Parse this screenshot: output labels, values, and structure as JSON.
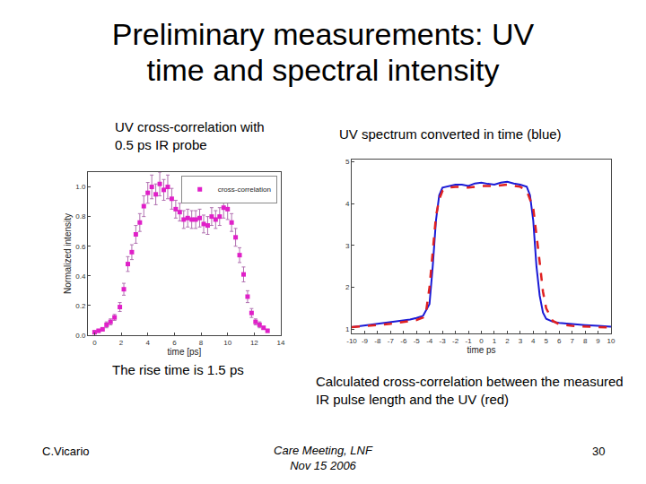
{
  "slide": {
    "title": [
      "Preliminary measurements: UV",
      "time and spectral intensity"
    ],
    "footer_left": "C.Vicario",
    "footer_center": [
      "Care Meeting, LNF",
      "Nov 15 2006"
    ],
    "page": 30
  },
  "chart_data": [
    {
      "type": "scatter",
      "title": [
        "UV cross-correlation with",
        "0.5 ps IR probe"
      ],
      "annotations": [
        "The rise time is 1.5 ps"
      ],
      "x_label": "time [ps]",
      "y_label": "Normalized intensity",
      "series": [
        {
          "name": "cross-correlation",
          "color": "#e020c8",
          "marker": "square",
          "x": [
            0.0,
            0.3,
            0.6,
            0.9,
            1.2,
            1.5,
            1.9,
            2.2,
            2.5,
            2.8,
            3.1,
            3.4,
            3.7,
            4.0,
            4.3,
            4.6,
            4.9,
            5.2,
            5.5,
            5.8,
            6.1,
            6.4,
            6.7,
            7.0,
            7.3,
            7.6,
            7.9,
            8.2,
            8.5,
            8.8,
            9.1,
            9.4,
            9.7,
            10.0,
            10.3,
            10.6,
            10.9,
            11.2,
            11.5,
            11.8,
            12.1,
            12.4,
            12.7,
            13.0
          ],
          "values": [
            0.02,
            0.03,
            0.04,
            0.07,
            0.09,
            0.12,
            0.19,
            0.31,
            0.48,
            0.56,
            0.68,
            0.76,
            0.87,
            0.96,
            1.0,
            0.95,
            1.02,
            0.98,
            1.0,
            0.92,
            0.85,
            0.83,
            0.78,
            0.79,
            0.78,
            0.78,
            0.79,
            0.75,
            0.74,
            0.8,
            0.78,
            0.8,
            0.86,
            0.85,
            0.76,
            0.66,
            0.54,
            0.41,
            0.26,
            0.15,
            0.09,
            0.07,
            0.05,
            0.03
          ],
          "errors": [
            0.01,
            0.01,
            0.01,
            0.02,
            0.02,
            0.02,
            0.03,
            0.04,
            0.05,
            0.05,
            0.06,
            0.06,
            0.07,
            0.07,
            0.08,
            0.07,
            0.08,
            0.07,
            0.08,
            0.07,
            0.06,
            0.06,
            0.06,
            0.06,
            0.06,
            0.06,
            0.06,
            0.06,
            0.06,
            0.06,
            0.06,
            0.06,
            0.07,
            0.07,
            0.06,
            0.06,
            0.05,
            0.05,
            0.04,
            0.03,
            0.02,
            0.02,
            0.01,
            0.01
          ]
        }
      ],
      "xlim": [
        -0.5,
        14
      ],
      "xticks": [
        0,
        2,
        4,
        6,
        8,
        10,
        12,
        14
      ],
      "ylim": [
        0,
        1.1
      ],
      "yticks": [
        {
          "value": 0,
          "label": "0.0"
        },
        {
          "value": 0.2,
          "label": "0.2"
        },
        {
          "value": 0.4,
          "label": "0.4"
        },
        {
          "value": 0.6,
          "label": "0.6"
        },
        {
          "value": 0.8,
          "label": "0.8"
        },
        {
          "value": 1.0,
          "label": "1.0"
        }
      ],
      "legend": "top right",
      "grid": false
    },
    {
      "type": "line",
      "title": [
        "UV spectrum converted in time (blue)"
      ],
      "annotations": [
        "Calculated cross-correlation between the measured IR pulse length and the UV (red)"
      ],
      "x_label": "time ps",
      "series": [
        {
          "color": "#1a1ad6",
          "line_style": "solid",
          "x": [
            -10,
            -9.5,
            -9,
            -8.5,
            -8,
            -7.5,
            -7,
            -6.5,
            -6,
            -5.5,
            -5,
            -4.5,
            -4,
            -3.75,
            -3.5,
            -3.25,
            -3,
            -2.5,
            -2,
            -1.5,
            -1,
            -0.5,
            0,
            0.5,
            1,
            1.5,
            2,
            2.5,
            3,
            3.5,
            3.75,
            4,
            4.25,
            4.5,
            4.75,
            5,
            5.5,
            6,
            7,
            8,
            9,
            10
          ],
          "values": [
            1.05,
            1.07,
            1.09,
            1.1,
            1.12,
            1.14,
            1.16,
            1.18,
            1.2,
            1.23,
            1.27,
            1.32,
            1.6,
            2.5,
            3.6,
            4.2,
            4.38,
            4.42,
            4.45,
            4.45,
            4.42,
            4.48,
            4.5,
            4.47,
            4.45,
            4.5,
            4.52,
            4.48,
            4.45,
            4.4,
            4.2,
            3.6,
            2.5,
            1.8,
            1.4,
            1.25,
            1.18,
            1.15,
            1.12,
            1.1,
            1.08,
            1.06
          ]
        },
        {
          "color": "#e02020",
          "line_style": "dash",
          "x": [
            -10,
            -9,
            -8,
            -7,
            -6,
            -5,
            -4.5,
            -4.25,
            -4,
            -3.75,
            -3.5,
            -3.25,
            -3,
            -2.5,
            -2,
            -1,
            0,
            1,
            2,
            3,
            3.5,
            4,
            4.25,
            4.5,
            4.75,
            5,
            5.5,
            6,
            7,
            8,
            9,
            10
          ],
          "values": [
            1.05,
            1.07,
            1.1,
            1.13,
            1.17,
            1.22,
            1.28,
            1.45,
            2.0,
            2.9,
            3.7,
            4.1,
            4.3,
            4.38,
            4.4,
            4.38,
            4.42,
            4.42,
            4.45,
            4.4,
            4.3,
            3.9,
            3.3,
            2.6,
            1.9,
            1.5,
            1.2,
            1.12,
            1.08,
            1.06,
            1.05,
            1.04
          ]
        }
      ],
      "xlim": [
        -10,
        10
      ],
      "xticks": [
        -10,
        -9,
        -8,
        -7,
        -6,
        -5,
        -4,
        -3,
        -2,
        -1,
        0,
        1,
        2,
        3,
        4,
        5,
        6,
        7,
        8,
        9,
        10
      ],
      "ylim": [
        0.9,
        5.05
      ],
      "yticks": [
        1,
        2,
        3,
        4,
        5
      ],
      "grid": false
    }
  ]
}
